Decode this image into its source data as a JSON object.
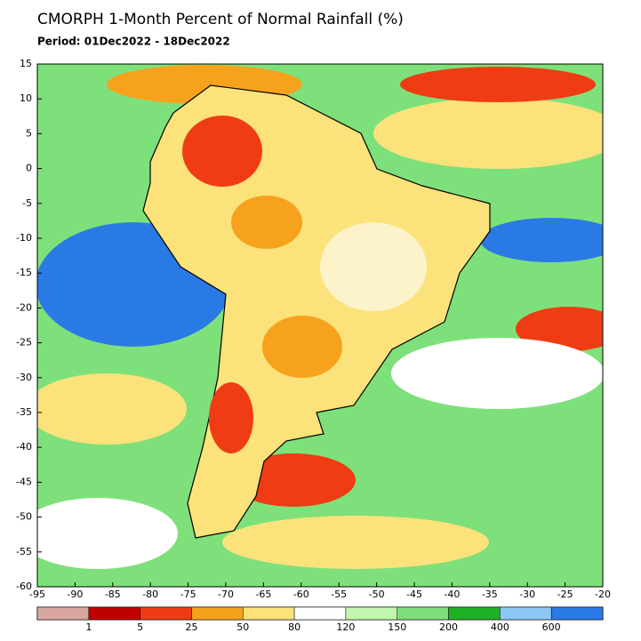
{
  "title": "CMORPH 1-Month Percent of Normal Rainfall (%)",
  "subtitle": "Period: 01Dec2022 - 18Dec2022",
  "map": {
    "xlim": [
      -95,
      -20
    ],
    "ylim": [
      -60,
      15
    ],
    "xticks": [
      -95,
      -90,
      -85,
      -80,
      -75,
      -70,
      -65,
      -60,
      -55,
      -50,
      -45,
      -40,
      -35,
      -30,
      -25,
      -20
    ],
    "yticks": [
      15,
      10,
      5,
      0,
      -5,
      -10,
      -15,
      -20,
      -25,
      -30,
      -35,
      -40,
      -45,
      -50,
      -55,
      -60
    ]
  },
  "legend": {
    "colors": [
      "#d8a8a0",
      "#c00000",
      "#f03c14",
      "#f7a21c",
      "#fbe27a",
      "#ffffff",
      "#c2f5b0",
      "#7ee07a",
      "#1fb226",
      "#8cc8f5",
      "#2a7ae6"
    ],
    "labels": [
      1,
      5,
      25,
      50,
      80,
      120,
      150,
      200,
      400,
      600
    ]
  }
}
